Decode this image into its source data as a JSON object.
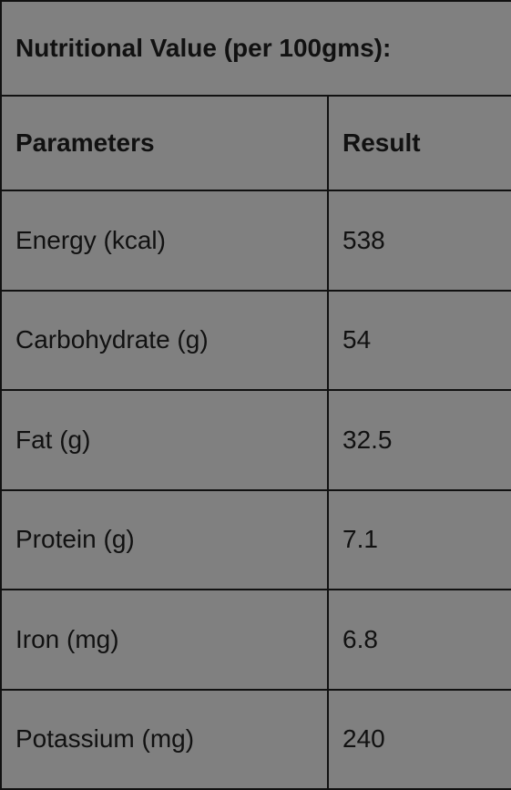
{
  "table": {
    "title": "Nutritional Value (per 100gms):",
    "header": [
      "Parameters",
      "Result"
    ],
    "rows": [
      [
        "Energy (kcal)",
        "538"
      ],
      [
        "Carbohydrate (g)",
        "54"
      ],
      [
        "Fat (g)",
        "32.5"
      ],
      [
        "Protein (g)",
        "7.1"
      ],
      [
        "Iron (mg)",
        "6.8"
      ],
      [
        "Potassium (mg)",
        "240"
      ]
    ]
  }
}
